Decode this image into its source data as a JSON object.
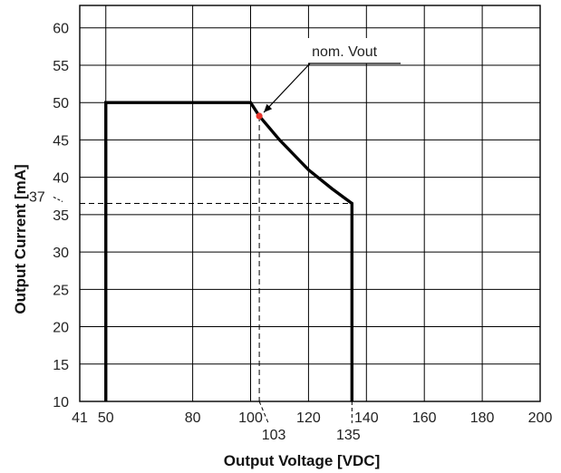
{
  "chart_data": {
    "type": "line",
    "title": "",
    "xlabel": "Output Voltage [VDC]",
    "ylabel": "Output Current [mA]",
    "xlim": [
      41,
      200
    ],
    "ylim": [
      10,
      63
    ],
    "grid": true,
    "x_ticks": [
      41,
      50,
      80,
      100,
      120,
      140,
      160,
      180,
      200
    ],
    "y_ticks": [
      10,
      15,
      20,
      25,
      30,
      35,
      40,
      45,
      50,
      55,
      60
    ],
    "series": [
      {
        "x": [
          50,
          50,
          100,
          103,
          110,
          120,
          128,
          135,
          135
        ],
        "y": [
          10,
          50,
          50,
          48.2,
          45,
          41,
          38.5,
          36.5,
          10
        ]
      }
    ],
    "marker_point": {
      "x": 103,
      "y": 48.2,
      "color": "#e8332a"
    },
    "reference_labels": {
      "y_37": "37",
      "x_103": "103",
      "x_135": "135",
      "nom_vout": "nom. Vout"
    },
    "colors": {
      "curve": "#000000",
      "grid": "#000000",
      "dashed": "#000000"
    }
  }
}
